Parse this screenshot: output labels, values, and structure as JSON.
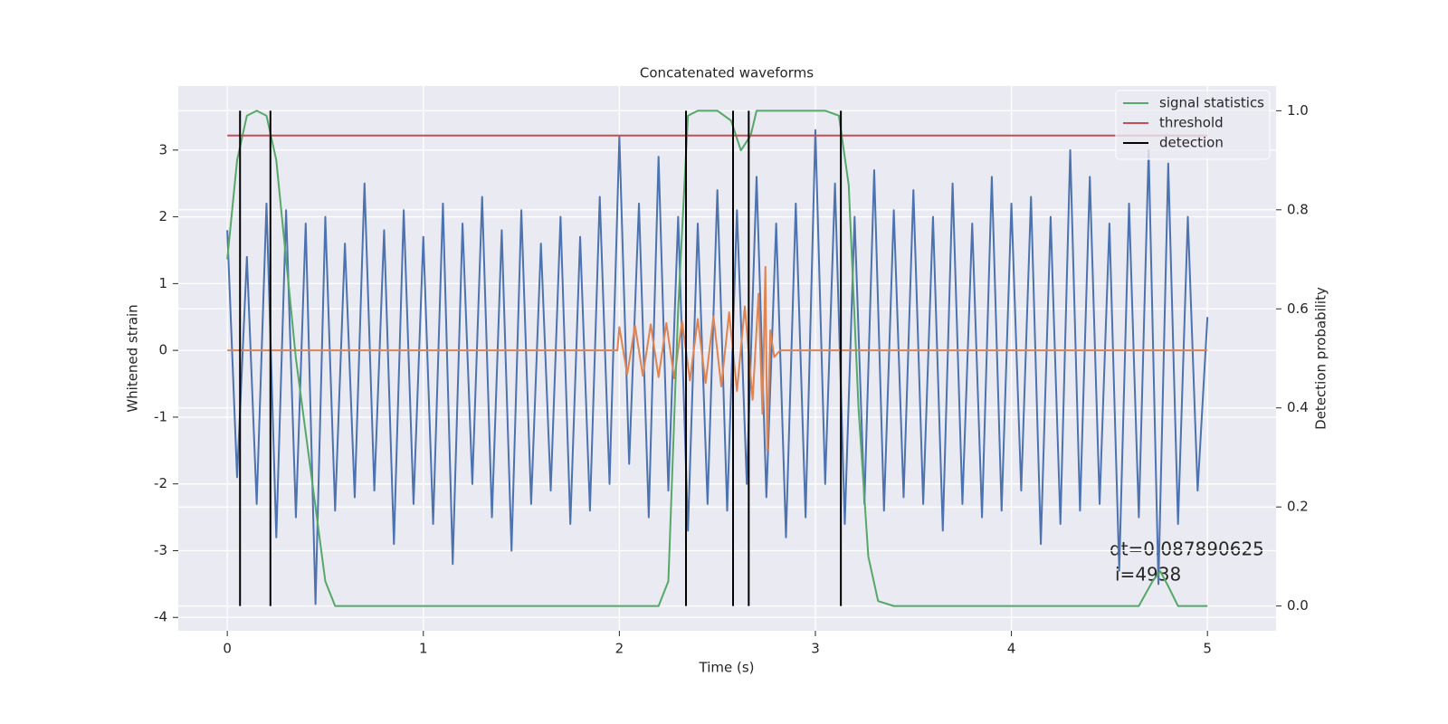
{
  "chart_data": {
    "type": "line",
    "title": "Concatenated waveforms",
    "xlabel": "Time (s)",
    "ylabel": "Whitened strain",
    "y2label": "Detection probability",
    "xlim": [
      -0.25,
      5.35
    ],
    "ylim": [
      -4.2,
      3.96
    ],
    "y2lim": [
      -0.05,
      1.05
    ],
    "xticks": [
      0,
      1,
      2,
      3,
      4,
      5
    ],
    "yticks": [
      -4,
      -3,
      -2,
      -1,
      0,
      1,
      2,
      3
    ],
    "y2ticks": [
      {
        "value": 0,
        "label": "0.0"
      },
      0.2,
      0.4,
      0.6,
      0.8,
      {
        "value": 1,
        "label": "1.0"
      }
    ],
    "grid": true,
    "legend": "upper right",
    "annotation": [
      "dt=0.087890625",
      "i=4938"
    ],
    "series": [
      {
        "color": "#4c72b0",
        "x": [
          0,
          0.05,
          0.1,
          0.15,
          0.2,
          0.25,
          0.3,
          0.35,
          0.4,
          0.45,
          0.5,
          0.55,
          0.6,
          0.65,
          0.7,
          0.75,
          0.8,
          0.85,
          0.9,
          0.95,
          1,
          1.05,
          1.1,
          1.15,
          1.2,
          1.25,
          1.3,
          1.35,
          1.4,
          1.45,
          1.5,
          1.55,
          1.6,
          1.65,
          1.7,
          1.75,
          1.8,
          1.85,
          1.9,
          1.95,
          2,
          2.05,
          2.1,
          2.15,
          2.2,
          2.25,
          2.3,
          2.35,
          2.4,
          2.45,
          2.5,
          2.55,
          2.6,
          2.65,
          2.7,
          2.75,
          2.8,
          2.85,
          2.9,
          2.95,
          3,
          3.05,
          3.1,
          3.15,
          3.2,
          3.25,
          3.3,
          3.35,
          3.4,
          3.45,
          3.5,
          3.55,
          3.6,
          3.65,
          3.7,
          3.75,
          3.8,
          3.85,
          3.9,
          3.95,
          4,
          4.05,
          4.1,
          4.15,
          4.2,
          4.25,
          4.3,
          4.35,
          4.4,
          4.45,
          4.5,
          4.55,
          4.6,
          4.65,
          4.7,
          4.75,
          4.8,
          4.85,
          4.9,
          4.95,
          5
        ],
        "values": [
          1.8,
          -1.9,
          1.4,
          -2.3,
          2.2,
          -2.8,
          2.1,
          -2.5,
          1.9,
          -3.8,
          2.0,
          -2.4,
          1.6,
          -2.2,
          2.5,
          -2.1,
          1.8,
          -2.9,
          2.1,
          -2.3,
          1.7,
          -2.6,
          2.2,
          -3.2,
          1.9,
          -2.0,
          2.3,
          -2.5,
          1.8,
          -3.0,
          2.1,
          -2.3,
          1.6,
          -2.1,
          2.0,
          -2.6,
          1.7,
          -2.4,
          2.3,
          -2.0,
          3.2,
          -1.7,
          2.2,
          -2.5,
          2.9,
          -2.1,
          2.0,
          -2.7,
          1.9,
          -2.3,
          2.4,
          -2.4,
          2.1,
          -2.0,
          2.6,
          -2.2,
          1.9,
          -2.8,
          2.2,
          -2.5,
          3.3,
          -2.0,
          2.5,
          -2.6,
          2.0,
          -2.3,
          2.7,
          -2.4,
          2.1,
          -2.2,
          2.4,
          -2.3,
          2.0,
          -2.7,
          2.5,
          -2.3,
          1.9,
          -2.5,
          2.6,
          -2.4,
          2.2,
          -2.1,
          2.3,
          -2.9,
          2.0,
          -2.6,
          3.0,
          -2.4,
          2.6,
          -2.3,
          1.9,
          -3.3,
          2.2,
          -2.5,
          3.0,
          -3.5,
          2.8,
          -2.6,
          2.0,
          -2.1,
          0.5
        ]
      },
      {
        "color": "#dd8452",
        "x": [
          0,
          1.99,
          2.0,
          2.04,
          2.08,
          2.12,
          2.16,
          2.2,
          2.24,
          2.28,
          2.32,
          2.36,
          2.4,
          2.44,
          2.48,
          2.52,
          2.56,
          2.6,
          2.64,
          2.68,
          2.71,
          2.73,
          2.745,
          2.755,
          2.77,
          2.79,
          2.82,
          5.0
        ],
        "values": [
          0,
          0,
          0.35,
          -0.36,
          0.37,
          -0.38,
          0.39,
          -0.4,
          0.41,
          -0.42,
          0.44,
          -0.45,
          0.47,
          -0.49,
          0.51,
          -0.54,
          0.57,
          -0.61,
          0.66,
          -0.74,
          0.85,
          -0.95,
          1.25,
          -1.5,
          0.3,
          -0.1,
          0,
          0
        ]
      },
      {
        "name": "signal statistics",
        "color": "#55a868",
        "axis": "y2",
        "x": [
          0,
          0.05,
          0.1,
          0.15,
          0.2,
          0.25,
          0.3,
          0.35,
          0.4,
          0.45,
          0.5,
          0.55,
          2.2,
          2.25,
          2.3,
          2.35,
          2.4,
          2.5,
          2.57,
          2.62,
          2.67,
          2.7,
          3.05,
          3.12,
          3.17,
          3.22,
          3.27,
          3.32,
          3.4,
          4.65,
          4.72,
          4.76,
          4.8,
          4.85,
          5.0
        ],
        "values": [
          0.7,
          0.9,
          0.99,
          1.0,
          0.99,
          0.9,
          0.7,
          0.5,
          0.35,
          0.2,
          0.05,
          0.0,
          0.0,
          0.05,
          0.6,
          0.99,
          1.0,
          1.0,
          0.98,
          0.92,
          0.95,
          1.0,
          1.0,
          0.99,
          0.85,
          0.4,
          0.1,
          0.01,
          0.0,
          0.0,
          0.05,
          0.07,
          0.04,
          0.0,
          0.0
        ]
      },
      {
        "name": "threshold",
        "color": "#c44e52",
        "axis": "y2",
        "x": [
          0,
          5
        ],
        "values": [
          0.95,
          0.95
        ]
      },
      {
        "name": "detection",
        "color": "#000000",
        "axis": "y2",
        "kind": "vlines",
        "x": [
          0.065,
          0.22,
          2.34,
          2.58,
          2.66,
          3.13
        ],
        "y_range": [
          0,
          1
        ]
      }
    ]
  }
}
